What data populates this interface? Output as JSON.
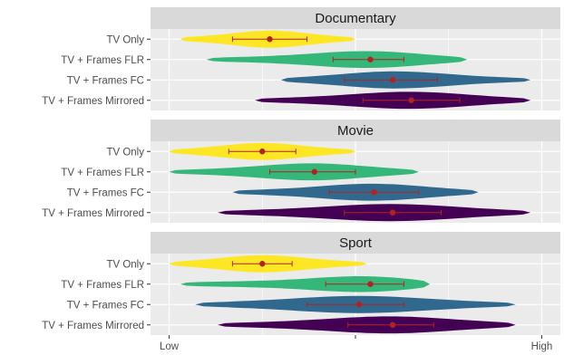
{
  "chart_data": {
    "type": "violin",
    "panels": [
      {
        "title": "Documentary",
        "groups": [
          {
            "label": "TV Only",
            "min": 0.03,
            "max": 0.5,
            "mean": 0.27,
            "ci": [
              0.17,
              0.37
            ]
          },
          {
            "label": "TV + Frames FLR",
            "min": 0.1,
            "max": 0.8,
            "mean": 0.54,
            "ci": [
              0.44,
              0.63
            ]
          },
          {
            "label": "TV + Frames FC",
            "min": 0.3,
            "max": 0.97,
            "mean": 0.6,
            "ci": [
              0.47,
              0.72
            ]
          },
          {
            "label": "TV + Frames Mirrored",
            "min": 0.23,
            "max": 0.97,
            "mean": 0.65,
            "ci": [
              0.52,
              0.78
            ]
          }
        ]
      },
      {
        "title": "Movie",
        "groups": [
          {
            "label": "TV Only",
            "min": 0.0,
            "max": 0.5,
            "mean": 0.25,
            "ci": [
              0.16,
              0.34
            ]
          },
          {
            "label": "TV + Frames FLR",
            "min": 0.0,
            "max": 0.67,
            "mean": 0.39,
            "ci": [
              0.27,
              0.5
            ]
          },
          {
            "label": "TV + Frames FC",
            "min": 0.17,
            "max": 0.83,
            "mean": 0.55,
            "ci": [
              0.43,
              0.67
            ]
          },
          {
            "label": "TV + Frames Mirrored",
            "min": 0.13,
            "max": 0.97,
            "mean": 0.6,
            "ci": [
              0.47,
              0.73
            ]
          }
        ]
      },
      {
        "title": "Sport",
        "groups": [
          {
            "label": "TV Only",
            "min": 0.0,
            "max": 0.53,
            "mean": 0.25,
            "ci": [
              0.17,
              0.33
            ]
          },
          {
            "label": "TV + Frames FLR",
            "min": 0.03,
            "max": 0.7,
            "mean": 0.54,
            "ci": [
              0.42,
              0.63
            ]
          },
          {
            "label": "TV + Frames FC",
            "min": 0.07,
            "max": 0.93,
            "mean": 0.51,
            "ci": [
              0.37,
              0.63
            ]
          },
          {
            "label": "TV + Frames Mirrored",
            "min": 0.13,
            "max": 0.93,
            "mean": 0.6,
            "ci": [
              0.48,
              0.71
            ]
          }
        ]
      }
    ],
    "x_axis": {
      "ticks": [
        {
          "value": 0,
          "label": "Low"
        },
        {
          "value": 0.5,
          "label": ""
        },
        {
          "value": 1,
          "label": "High"
        }
      ],
      "range": [
        -0.05,
        1.05
      ]
    },
    "grid": true,
    "colors": {
      "TV Only": "#FDE725",
      "TV + Frames FLR": "#35B779",
      "TV + Frames FC": "#31688E",
      "TV + Frames Mirrored": "#440154",
      "mean_point": "#B22222",
      "panel_bg": "#EBEBEB",
      "strip_bg": "#D9D9D9",
      "grid_line": "#FFFFFF"
    }
  }
}
